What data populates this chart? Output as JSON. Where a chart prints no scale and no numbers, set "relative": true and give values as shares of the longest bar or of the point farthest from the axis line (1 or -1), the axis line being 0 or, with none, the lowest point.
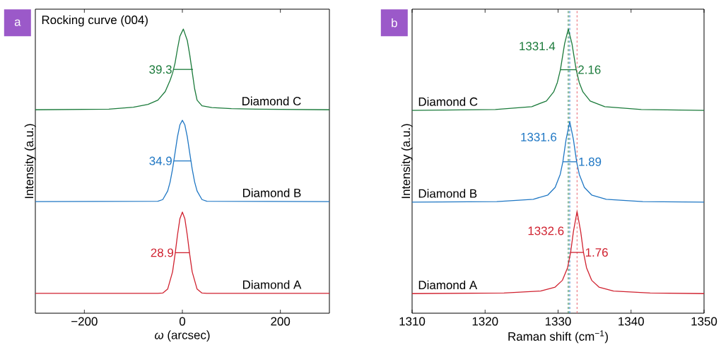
{
  "chart_data": [
    {
      "type": "line",
      "title": "a",
      "xlabel": "*ω* (arcsec)",
      "ylabel": "Intensity (a.u.)",
      "relative": true,
      "tick_labels": "x",
      "xlim": [
        -300,
        300
      ],
      "xticks": [
        {
          "value": -200,
          "label": "−200"
        },
        0,
        200
      ],
      "annotations": [
        "Rocking curve (004)",
        {
          "text": "28.9",
          "x": -14.45,
          "y": 0.213
        },
        {
          "text": "34.9",
          "x": -17.45,
          "y": 0.536
        },
        {
          "text": "39.3",
          "x": -17.65,
          "y": 0.858
        }
      ],
      "series": [
        {
          "name": "Diamond A",
          "color": "#d0212f",
          "x": [
            -300,
            -50,
            -40,
            -30,
            -20,
            -15,
            -10,
            -5,
            0,
            5,
            10,
            15,
            20,
            30,
            40,
            50,
            300
          ],
          "values": [
            0.07,
            0.07,
            0.071,
            0.085,
            0.146,
            0.206,
            0.275,
            0.333,
            0.356,
            0.333,
            0.275,
            0.206,
            0.146,
            0.085,
            0.071,
            0.07,
            0.07
          ]
        },
        {
          "name": "Diamond B",
          "color": "#1f77c4",
          "x": [
            -300,
            -50,
            -40,
            -30,
            -25,
            -20,
            -15,
            -10,
            -5,
            0,
            5,
            10,
            15,
            20,
            25,
            30,
            40,
            50,
            300
          ],
          "values": [
            0.393,
            0.394,
            0.4,
            0.43,
            0.462,
            0.508,
            0.564,
            0.621,
            0.663,
            0.679,
            0.663,
            0.621,
            0.564,
            0.508,
            0.462,
            0.43,
            0.4,
            0.394,
            0.393
          ]
        },
        {
          "name": "Diamond C",
          "color": "#1a7a3a",
          "x": [
            -300,
            -150,
            -100,
            -70,
            -50,
            -35,
            -25,
            -20,
            -15,
            -10,
            -5,
            2,
            10,
            15,
            20,
            25,
            30,
            40,
            60,
            100,
            150,
            300
          ],
          "values": [
            0.716,
            0.718,
            0.725,
            0.735,
            0.75,
            0.78,
            0.82,
            0.845,
            0.88,
            0.93,
            0.975,
            1.0,
            0.96,
            0.91,
            0.85,
            0.79,
            0.75,
            0.73,
            0.724,
            0.72,
            0.718,
            0.716
          ]
        },
        {
          "type": "line",
          "color": "#d0212f",
          "x": [
            -14.45,
            14.45
          ],
          "values": [
            0.213,
            0.213
          ]
        },
        {
          "type": "line",
          "color": "#1f77c4",
          "x": [
            -17.45,
            17.45
          ],
          "values": [
            0.536,
            0.536
          ]
        },
        {
          "type": "line",
          "color": "#1a7a3a",
          "x": [
            -17.65,
            21.65
          ],
          "values": [
            0.858,
            0.858
          ]
        }
      ]
    },
    {
      "type": "line",
      "title": "b",
      "xlabel": "Raman shift (cm$^{−1}$)",
      "ylabel": "Intensity (a.u.)",
      "relative": true,
      "tick_labels": "x",
      "xlim": [
        1310,
        1350
      ],
      "xticks": [
        1310,
        1320,
        1330,
        1340,
        1350
      ],
      "annotations": [
        {
          "text": "1332.6",
          "x": 1332.6,
          "y": 0.29
        },
        {
          "text": "1.76",
          "x": 1333.48,
          "y": 0.214
        },
        {
          "text": "1331.6",
          "x": 1331.6,
          "y": 0.62
        },
        {
          "text": "1.89",
          "x": 1332.55,
          "y": 0.533
        },
        {
          "text": "1331.4",
          "x": 1331.4,
          "y": 0.94
        },
        {
          "text": "2.16",
          "x": 1332.48,
          "y": 0.857
        }
      ],
      "ref_lines": [
        {
          "axis": "x",
          "value": 1331.4,
          "color": "#1a7a3a",
          "line_style": "dashed"
        },
        {
          "axis": "x",
          "value": 1331.6,
          "color": "#1f77c4",
          "line_style": "dashed"
        },
        {
          "axis": "x",
          "value": 1332.6,
          "color": "#e8606a",
          "line_style": "dashed"
        }
      ],
      "series": [
        {
          "name": "Diamond A",
          "color": "#d0212f",
          "x": [
            1310,
            1322.6,
            1327.6,
            1329.6,
            1330.6,
            1331.3,
            1331.72,
            1332.1,
            1332.6,
            1333.1,
            1333.48,
            1333.9,
            1334.6,
            1335.6,
            1337.6,
            1342.6,
            1350
          ],
          "values": [
            0.069,
            0.071,
            0.078,
            0.092,
            0.116,
            0.16,
            0.214,
            0.287,
            0.358,
            0.287,
            0.214,
            0.16,
            0.116,
            0.092,
            0.078,
            0.071,
            0.069
          ]
        },
        {
          "name": "Diamond B",
          "color": "#1f77c4",
          "x": [
            1310,
            1321.6,
            1326.6,
            1328.6,
            1329.6,
            1330.3,
            1330.655,
            1331.1,
            1331.6,
            1332.1,
            1332.545,
            1332.9,
            1333.6,
            1334.6,
            1336.6,
            1341.6,
            1350
          ],
          "values": [
            0.391,
            0.393,
            0.401,
            0.416,
            0.443,
            0.489,
            0.533,
            0.612,
            0.674,
            0.612,
            0.533,
            0.489,
            0.443,
            0.416,
            0.401,
            0.393,
            0.391
          ]
        },
        {
          "name": "Diamond C",
          "color": "#1a7a3a",
          "x": [
            1310,
            1321.4,
            1326.4,
            1328.4,
            1329.4,
            1329.9,
            1330.32,
            1330.9,
            1331.4,
            1331.9,
            1332.48,
            1332.9,
            1333.4,
            1334.4,
            1336.4,
            1341.4,
            1350
          ],
          "values": [
            0.714,
            0.717,
            0.727,
            0.747,
            0.779,
            0.812,
            0.857,
            0.949,
            1.0,
            0.949,
            0.857,
            0.812,
            0.779,
            0.747,
            0.727,
            0.717,
            0.714
          ]
        },
        {
          "color": "#d0212f",
          "x": [
            1331.72,
            1333.48
          ],
          "values": [
            0.214,
            0.214
          ]
        },
        {
          "color": "#1f77c4",
          "x": [
            1330.655,
            1332.545
          ],
          "values": [
            0.533,
            0.533
          ]
        },
        {
          "color": "#1a7a3a",
          "x": [
            1330.32,
            1332.48
          ],
          "values": [
            0.857,
            0.857
          ]
        }
      ]
    }
  ]
}
